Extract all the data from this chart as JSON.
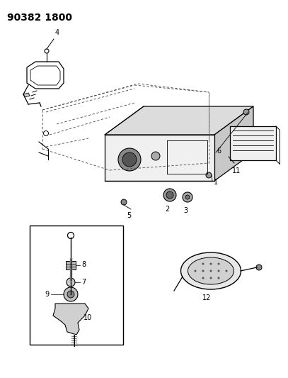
{
  "title": "90382 1800",
  "bg_color": "#ffffff",
  "line_color": "#000000",
  "gray_fill": "#e8e8e8",
  "dark_gray": "#555555"
}
